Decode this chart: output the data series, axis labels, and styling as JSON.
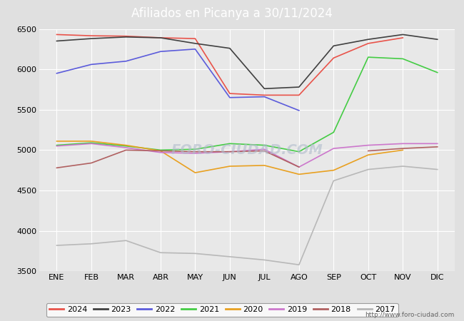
{
  "title": "Afiliados en Picanya a 30/11/2024",
  "title_bg_color": "#4a86c8",
  "title_text_color": "white",
  "ylim": [
    3500,
    6500
  ],
  "yticks": [
    3500,
    4000,
    4500,
    5000,
    5500,
    6000,
    6500
  ],
  "months": [
    "ENE",
    "FEB",
    "MAR",
    "ABR",
    "MAY",
    "JUN",
    "JUL",
    "AGO",
    "SEP",
    "OCT",
    "NOV",
    "DIC"
  ],
  "outer_bg_color": "#e0e0e0",
  "plot_bg_color": "#e8e8e8",
  "watermark": "FORO-CIUDAD.COM",
  "url": "http://www.foro-ciudad.com",
  "series": {
    "2024": {
      "color": "#e8534a",
      "data": [
        6430,
        6415,
        6410,
        6390,
        6380,
        5700,
        5680,
        5680,
        6140,
        6320,
        6390,
        null
      ]
    },
    "2023": {
      "color": "#404040",
      "data": [
        6350,
        6380,
        6400,
        6390,
        6320,
        6260,
        5760,
        5780,
        6290,
        6370,
        6430,
        6370
      ]
    },
    "2022": {
      "color": "#5b5bdb",
      "data": [
        5950,
        6060,
        6100,
        6220,
        6250,
        5650,
        5660,
        5490,
        null,
        null,
        null,
        null
      ]
    },
    "2021": {
      "color": "#44cc44",
      "data": [
        5060,
        5090,
        5050,
        5000,
        5010,
        5080,
        5060,
        4980,
        5220,
        6150,
        6130,
        5960
      ]
    },
    "2020": {
      "color": "#e8a020",
      "data": [
        5110,
        5110,
        5060,
        4990,
        4720,
        4800,
        4810,
        4700,
        4750,
        4940,
        5000,
        null
      ]
    },
    "2019": {
      "color": "#cc77cc",
      "data": [
        5050,
        5080,
        5030,
        4970,
        4960,
        4980,
        5010,
        4790,
        5020,
        5060,
        5080,
        5080
      ]
    },
    "2018": {
      "color": "#b06060",
      "data": [
        4780,
        4840,
        5000,
        4990,
        4980,
        4980,
        4990,
        4790,
        null,
        4990,
        5020,
        5040
      ]
    },
    "2017": {
      "color": "#b8b8b8",
      "data": [
        3820,
        3840,
        3880,
        3730,
        3720,
        3680,
        3640,
        3580,
        4620,
        4760,
        4800,
        4760
      ]
    }
  },
  "legend_order": [
    "2024",
    "2023",
    "2022",
    "2021",
    "2020",
    "2019",
    "2018",
    "2017"
  ]
}
